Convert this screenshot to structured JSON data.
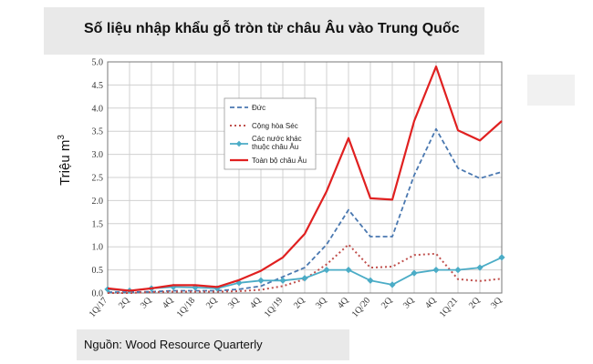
{
  "title": "Số liệu nhập khẩu gỗ tròn từ châu Âu vào Trung Quốc",
  "source": "Nguồn: Wood Resource Quarterly",
  "ylabel_text": "Triệu m",
  "ylabel_sup": "3",
  "chart_data": {
    "type": "line",
    "title": "Số liệu nhập khẩu gỗ tròn từ châu Âu vào Trung Quốc",
    "xlabel": "",
    "ylabel": "Triệu m3",
    "ylim": [
      0,
      5.0
    ],
    "yticks": [
      "0.0",
      "0.5",
      "1.0",
      "1.5",
      "2.0",
      "2.5",
      "3.0",
      "3.5",
      "4.0",
      "4.5",
      "5.0"
    ],
    "grid": true,
    "legend_position": "upper-left inside plot",
    "categories": [
      "1Q/17",
      "2Q",
      "3Q",
      "4Q",
      "1Q/18",
      "2Q",
      "3Q",
      "4Q",
      "1Q/19",
      "2Q",
      "3Q",
      "4Q",
      "1Q/20",
      "2Q",
      "3Q",
      "4Q",
      "1Q/21",
      "2Q",
      "3Q"
    ],
    "series": [
      {
        "name": "Đức",
        "color": "#4a78b0",
        "style": "dashed",
        "values": [
          0.02,
          0.02,
          0.03,
          0.05,
          0.05,
          0.05,
          0.08,
          0.15,
          0.35,
          0.55,
          1.05,
          1.8,
          1.22,
          1.22,
          2.55,
          3.55,
          2.7,
          2.48,
          2.62
        ]
      },
      {
        "name": "Cộng hòa Séc",
        "color": "#c0504d",
        "style": "dotted",
        "values": [
          0.0,
          0.0,
          0.02,
          0.03,
          0.03,
          0.03,
          0.04,
          0.07,
          0.15,
          0.3,
          0.62,
          1.05,
          0.55,
          0.57,
          0.82,
          0.85,
          0.3,
          0.26,
          0.31
        ]
      },
      {
        "name": "Các nước khác thuộc châu Âu",
        "color": "#4bacc6",
        "style": "solid-marker",
        "values": [
          0.08,
          0.05,
          0.1,
          0.13,
          0.12,
          0.1,
          0.22,
          0.27,
          0.27,
          0.32,
          0.5,
          0.5,
          0.27,
          0.18,
          0.43,
          0.5,
          0.5,
          0.55,
          0.77
        ]
      },
      {
        "name": "Toàn bộ châu Âu",
        "color": "#e02020",
        "style": "solid",
        "values": [
          0.1,
          0.05,
          0.1,
          0.17,
          0.17,
          0.13,
          0.28,
          0.48,
          0.77,
          1.28,
          2.2,
          3.35,
          2.05,
          2.02,
          3.72,
          4.9,
          3.52,
          3.3,
          3.72
        ]
      }
    ]
  }
}
